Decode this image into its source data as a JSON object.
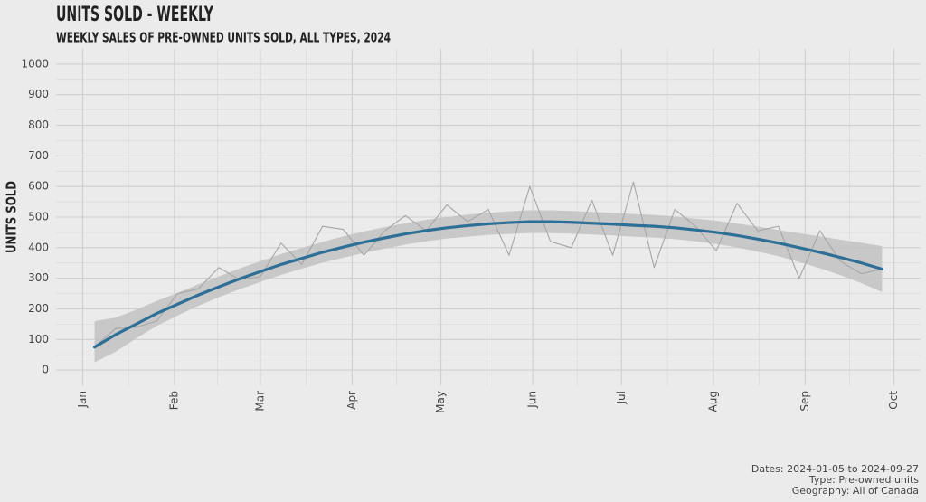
{
  "chart_data": {
    "type": "line",
    "title": "UNITS SOLD - WEEKLY",
    "subtitle": "WEEKLY SALES OF PRE-OWNED UNITS SOLD, ALL TYPES, 2024",
    "y_label": "UNITS SOLD",
    "caption": [
      "Dates: 2024-01-05 to 2024-09-27",
      "Type: Pre-owned units",
      "Geography: All of Canada"
    ],
    "x": [
      "2024-01-05",
      "2024-01-12",
      "2024-01-19",
      "2024-01-26",
      "2024-02-02",
      "2024-02-09",
      "2024-02-16",
      "2024-02-23",
      "2024-03-01",
      "2024-03-08",
      "2024-03-15",
      "2024-03-22",
      "2024-03-29",
      "2024-04-05",
      "2024-04-12",
      "2024-04-19",
      "2024-04-26",
      "2024-05-03",
      "2024-05-10",
      "2024-05-17",
      "2024-05-24",
      "2024-05-31",
      "2024-06-07",
      "2024-06-14",
      "2024-06-21",
      "2024-06-28",
      "2024-07-05",
      "2024-07-12",
      "2024-07-19",
      "2024-07-26",
      "2024-08-02",
      "2024-08-09",
      "2024-08-16",
      "2024-08-23",
      "2024-08-30",
      "2024-09-06",
      "2024-09-13",
      "2024-09-20",
      "2024-09-27"
    ],
    "series": [
      {
        "color": "#a6a6a6",
        "values": [
          75,
          135,
          140,
          160,
          250,
          265,
          335,
          295,
          305,
          415,
          345,
          470,
          460,
          375,
          455,
          505,
          455,
          540,
          485,
          525,
          375,
          600,
          420,
          400,
          555,
          375,
          615,
          335,
          525,
          470,
          390,
          545,
          455,
          470,
          300,
          455,
          355,
          315,
          330
        ]
      },
      {
        "color": "#2e6f97",
        "band_color": "#c2c2c2",
        "values": [
          75,
          115,
          150,
          185,
          215,
          245,
          272,
          298,
          322,
          345,
          365,
          385,
          402,
          418,
          432,
          445,
          456,
          465,
          472,
          478,
          482,
          485,
          485,
          483,
          480,
          477,
          473,
          470,
          465,
          458,
          450,
          440,
          428,
          415,
          400,
          385,
          368,
          350,
          330
        ],
        "lower": [
          25,
          59,
          103,
          144,
          178,
          210,
          238,
          264,
          288,
          311,
          331,
          351,
          367,
          383,
          397,
          410,
          421,
          430,
          436,
          442,
          445,
          448,
          448,
          446,
          443,
          440,
          436,
          433,
          428,
          421,
          412,
          401,
          387,
          372,
          353,
          333,
          310,
          284,
          255
        ],
        "upper": [
          160,
          171,
          197,
          226,
          252,
          280,
          306,
          332,
          356,
          379,
          399,
          419,
          437,
          453,
          467,
          480,
          491,
          500,
          508,
          514,
          519,
          522,
          522,
          520,
          517,
          514,
          510,
          507,
          502,
          495,
          488,
          479,
          469,
          458,
          447,
          437,
          426,
          416,
          405
        ]
      }
    ],
    "xlim": [
      "2023-12-23",
      "2024-10-10"
    ],
    "xticks": [
      {
        "value": "2024-01-01",
        "label": "Jan"
      },
      {
        "value": "2024-02-01",
        "label": "Feb"
      },
      {
        "value": "2024-03-01",
        "label": "Mar"
      },
      {
        "value": "2024-04-01",
        "label": "Apr"
      },
      {
        "value": "2024-05-01",
        "label": "May"
      },
      {
        "value": "2024-06-01",
        "label": "Jun"
      },
      {
        "value": "2024-07-01",
        "label": "Jul"
      },
      {
        "value": "2024-08-01",
        "label": "Aug"
      },
      {
        "value": "2024-09-01",
        "label": "Sep"
      },
      {
        "value": "2024-10-01",
        "label": "Oct"
      }
    ],
    "ylim": [
      -50,
      1050
    ],
    "yticks": [
      0,
      100,
      200,
      300,
      400,
      500,
      600,
      700,
      800,
      900,
      1000
    ],
    "grid": true
  }
}
